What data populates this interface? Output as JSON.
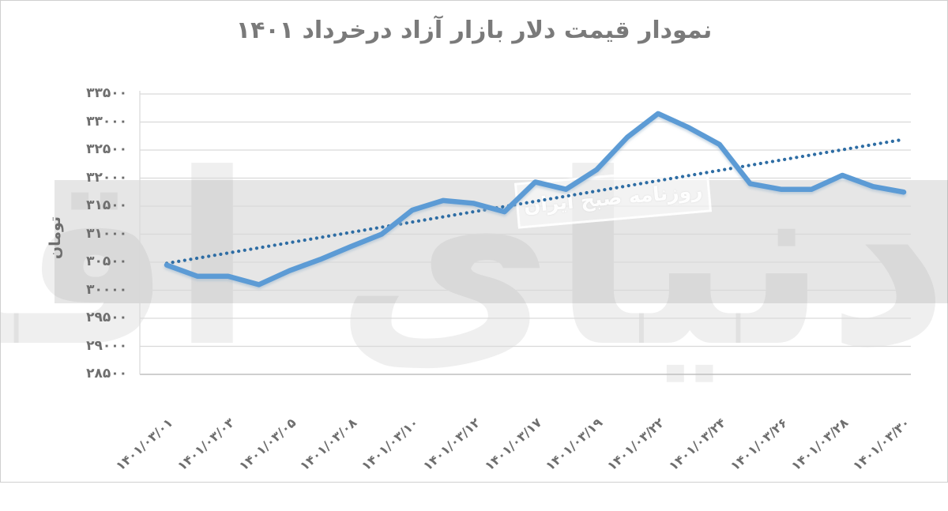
{
  "title": "نمودار قیمت دلار بازار آزاد درخرداد ۱۴۰۱",
  "watermark": {
    "logo_text": "دنیای اقتصاد",
    "box_text": "روزنامه صبح ایران"
  },
  "colors": {
    "price_line": "#5b9bd5",
    "trend_line": "#2e6da4",
    "gridline": "#d9d9d9",
    "axis_line": "#bfbfbf",
    "label_gray": "#6e6e6e",
    "title_gray": "#7a7a7a"
  },
  "chart_data": {
    "type": "line",
    "title": "نمودار قیمت دلار بازار آزاد درخرداد ۱۴۰۱",
    "xlabel": "",
    "ylabel": "تومان",
    "ylim": [
      28500,
      33500
    ],
    "ytick_step": 500,
    "ytick_labels_top_to_bottom": [
      "۳۳۵۰۰",
      "۳۳۰۰۰",
      "۳۲۵۰۰",
      "۳۲۰۰۰",
      "۳۱۵۰۰",
      "۳۱۰۰۰",
      "۳۰۵۰۰",
      "۳۰۰۰۰",
      "۲۹۵۰۰",
      "۲۹۰۰۰",
      "۲۸۵۰۰"
    ],
    "ytick_values_top_to_bottom": [
      33500,
      33000,
      32500,
      32000,
      31500,
      31000,
      30500,
      30000,
      29500,
      29000,
      28500
    ],
    "x_tick_labels": [
      "۱۴۰۱/۰۳/۰۱",
      "۱۴۰۱/۰۳/۰۳",
      "۱۴۰۱/۰۳/۰۵",
      "۱۴۰۱/۰۳/۰۸",
      "۱۴۰۱/۰۳/۱۰",
      "۱۴۰۱/۰۳/۱۲",
      "۱۴۰۱/۰۳/۱۷",
      "۱۴۰۱/۰۳/۱۹",
      "۱۴۰۱/۰۳/۲۲",
      "۱۴۰۱/۰۳/۲۴",
      "۱۴۰۱/۰۳/۲۶",
      "۱۴۰۱/۰۳/۲۸",
      "۱۴۰۱/۰۳/۳۰"
    ],
    "x_tick_point_indices": [
      0,
      2,
      4,
      6,
      8,
      10,
      12,
      14,
      16,
      18,
      20,
      22,
      24
    ],
    "grid": "horizontal",
    "legend": "none",
    "series": [
      {
        "name": "free-market-dollar-price",
        "style": "solid",
        "color": "#5b9bd5",
        "values": [
          30450,
          30250,
          30250,
          30100,
          30350,
          30550,
          30780,
          31000,
          31430,
          31600,
          31550,
          31400,
          31930,
          31800,
          32150,
          32730,
          33150,
          32900,
          32600,
          31900,
          31800,
          31800,
          32050,
          31850,
          31750
        ]
      },
      {
        "name": "linear-trendline",
        "style": "dotted",
        "color": "#2e6da4",
        "start_value": 30480,
        "end_value": 32690
      }
    ],
    "notes": "x tick labels are shown on every other data point; values in toman, estimated from gridlines"
  }
}
